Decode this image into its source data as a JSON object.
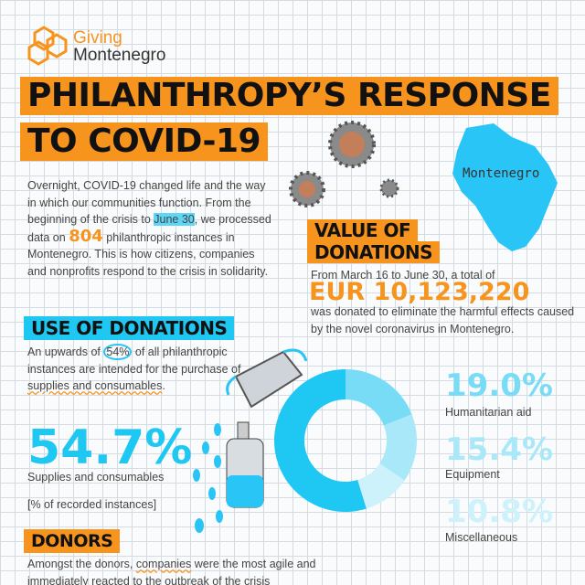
{
  "header": {
    "brand_top": "Giving",
    "brand_bottom": "Montenegro",
    "title_line1": "PHILANTHROPY’S RESPONSE",
    "title_line2": "TO COVID-19"
  },
  "intro": {
    "parts": [
      "Overnight, COVID-19 changed life and the way in which our communities function. From the beginning of the crisis to ",
      "June 30",
      ", we processed data on ",
      "804",
      " philanthropic instances in Montenegro. This is how citizens, companies and nonprofits respond to the crisis in solidarity."
    ]
  },
  "map_label": "Montenegro",
  "value_section": {
    "heading_line1": "VALUE OF",
    "heading_line2": "DONATIONS",
    "lead": "From March 16 to June 30, a total of",
    "amount": "EUR 10,123,220",
    "rest": "was donated to eliminate the harmful effects caused by the novel coronavirus in Montenegro."
  },
  "use_section": {
    "heading": "USE OF DONATIONS",
    "parts": [
      "An upwards of ",
      "54%",
      " of all philanthropic instances are intended for the purchase of ",
      "supplies and consumables",
      "."
    ],
    "note": "[% of recorded instances]"
  },
  "donut": {
    "type": "pie",
    "categories": [
      "Supplies and consumables",
      "Humanitarian aid",
      "Equipment",
      "Miscellaneous"
    ],
    "values": [
      54.7,
      19.0,
      15.4,
      10.8
    ],
    "value_labels": [
      "54.7%",
      "19.0%",
      "15.4%",
      "10.8%"
    ],
    "colors": [
      "#1ec8f3",
      "#79dcf7",
      "#a9e8f9",
      "#cdf2fb"
    ]
  },
  "donors_section": {
    "heading": "DONORS",
    "parts": [
      "Amongst the donors, ",
      "companies",
      " were the most agile and immediately reacted to the outbreak of the crisis"
    ]
  }
}
